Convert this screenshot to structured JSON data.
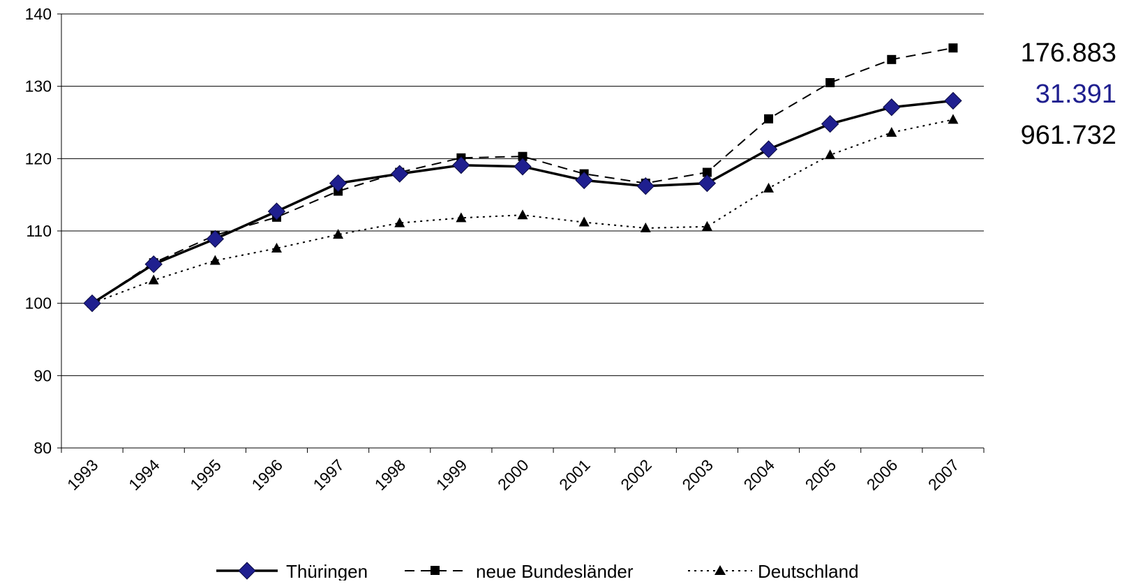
{
  "chart_data": {
    "type": "line",
    "title": "",
    "xlabel": "",
    "ylabel": "",
    "categories": [
      "1993",
      "1994",
      "1995",
      "1996",
      "1997",
      "1998",
      "1999",
      "2000",
      "2001",
      "2002",
      "2003",
      "2004",
      "2005",
      "2006",
      "2007"
    ],
    "ylim": [
      80,
      140
    ],
    "yticks": [
      80,
      90,
      100,
      110,
      120,
      130,
      140
    ],
    "grid": "horizontal",
    "legend_position": "bottom",
    "series": [
      {
        "name": "Thüringen",
        "style": "solid",
        "marker": "diamond",
        "color": "#000000",
        "marker_color": "#1f1f8f",
        "values": [
          100,
          105.4,
          108.9,
          112.7,
          116.6,
          117.9,
          119.1,
          118.9,
          117.0,
          116.2,
          116.6,
          121.3,
          124.8,
          127.1,
          128.0
        ]
      },
      {
        "name": "neue Bundesländer",
        "style": "dashed",
        "marker": "square",
        "color": "#000000",
        "marker_color": "#000000",
        "values": [
          100,
          105.6,
          109.4,
          111.9,
          115.5,
          118.1,
          120.1,
          120.3,
          117.9,
          116.6,
          118.1,
          125.5,
          130.5,
          133.7,
          135.3
        ]
      },
      {
        "name": "Deutschland",
        "style": "dotted",
        "marker": "triangle",
        "color": "#000000",
        "marker_color": "#000000",
        "values": [
          100,
          103.2,
          105.9,
          107.6,
          109.5,
          111.1,
          111.8,
          112.2,
          111.2,
          110.4,
          110.6,
          115.9,
          120.5,
          123.6,
          125.4
        ]
      }
    ],
    "end_labels": [
      {
        "text": "176.883",
        "color": "#000000"
      },
      {
        "text": "31.391",
        "color": "#1f1f8f"
      },
      {
        "text": "961.732",
        "color": "#000000"
      }
    ]
  }
}
